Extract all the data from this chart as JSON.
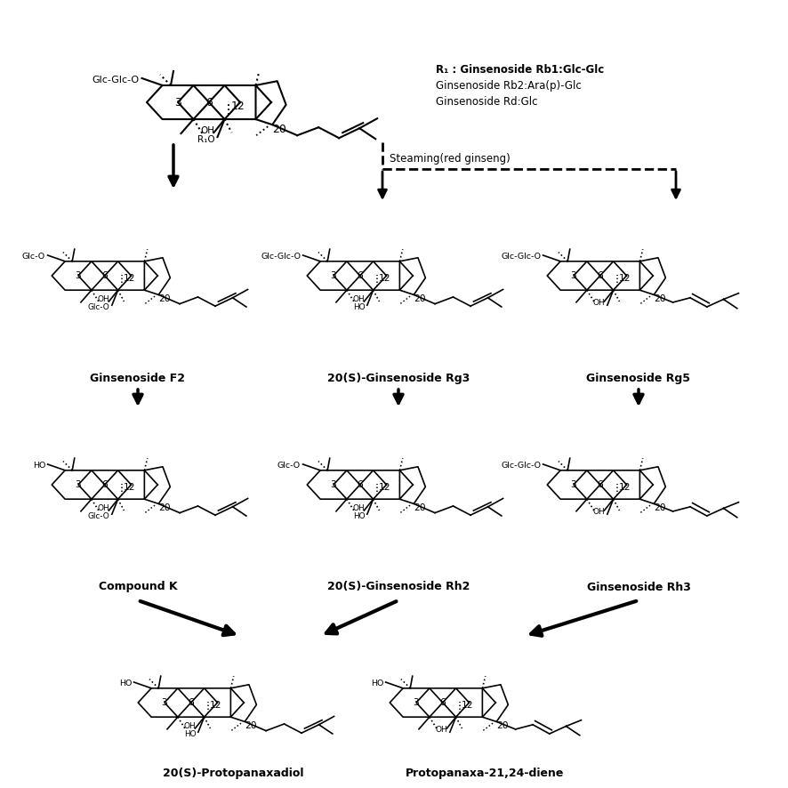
{
  "background": "#ffffff",
  "line_color": "#000000",
  "r1_lines": [
    "R₁ : Ginsenoside Rb1:Glc-Glc",
    "Ginsenoside Rb2:Ara(p)-Glc",
    "Ginsenoside Rd:Glc"
  ],
  "steaming_label": "Steaming(red ginseng)",
  "compound_labels": {
    "F2": "Ginsenoside F2",
    "Rg3": "20(S)-Ginsenoside Rg3",
    "Rg5": "Ginsenoside Rg5",
    "CK": "Compound K",
    "Rh2": "20(S)-Ginsenoside Rh2",
    "Rh3": "Ginsenoside Rh3",
    "PPD": "20(S)-Protopanaxadiol",
    "diene": "Protopanaxa-21,24-diene"
  }
}
